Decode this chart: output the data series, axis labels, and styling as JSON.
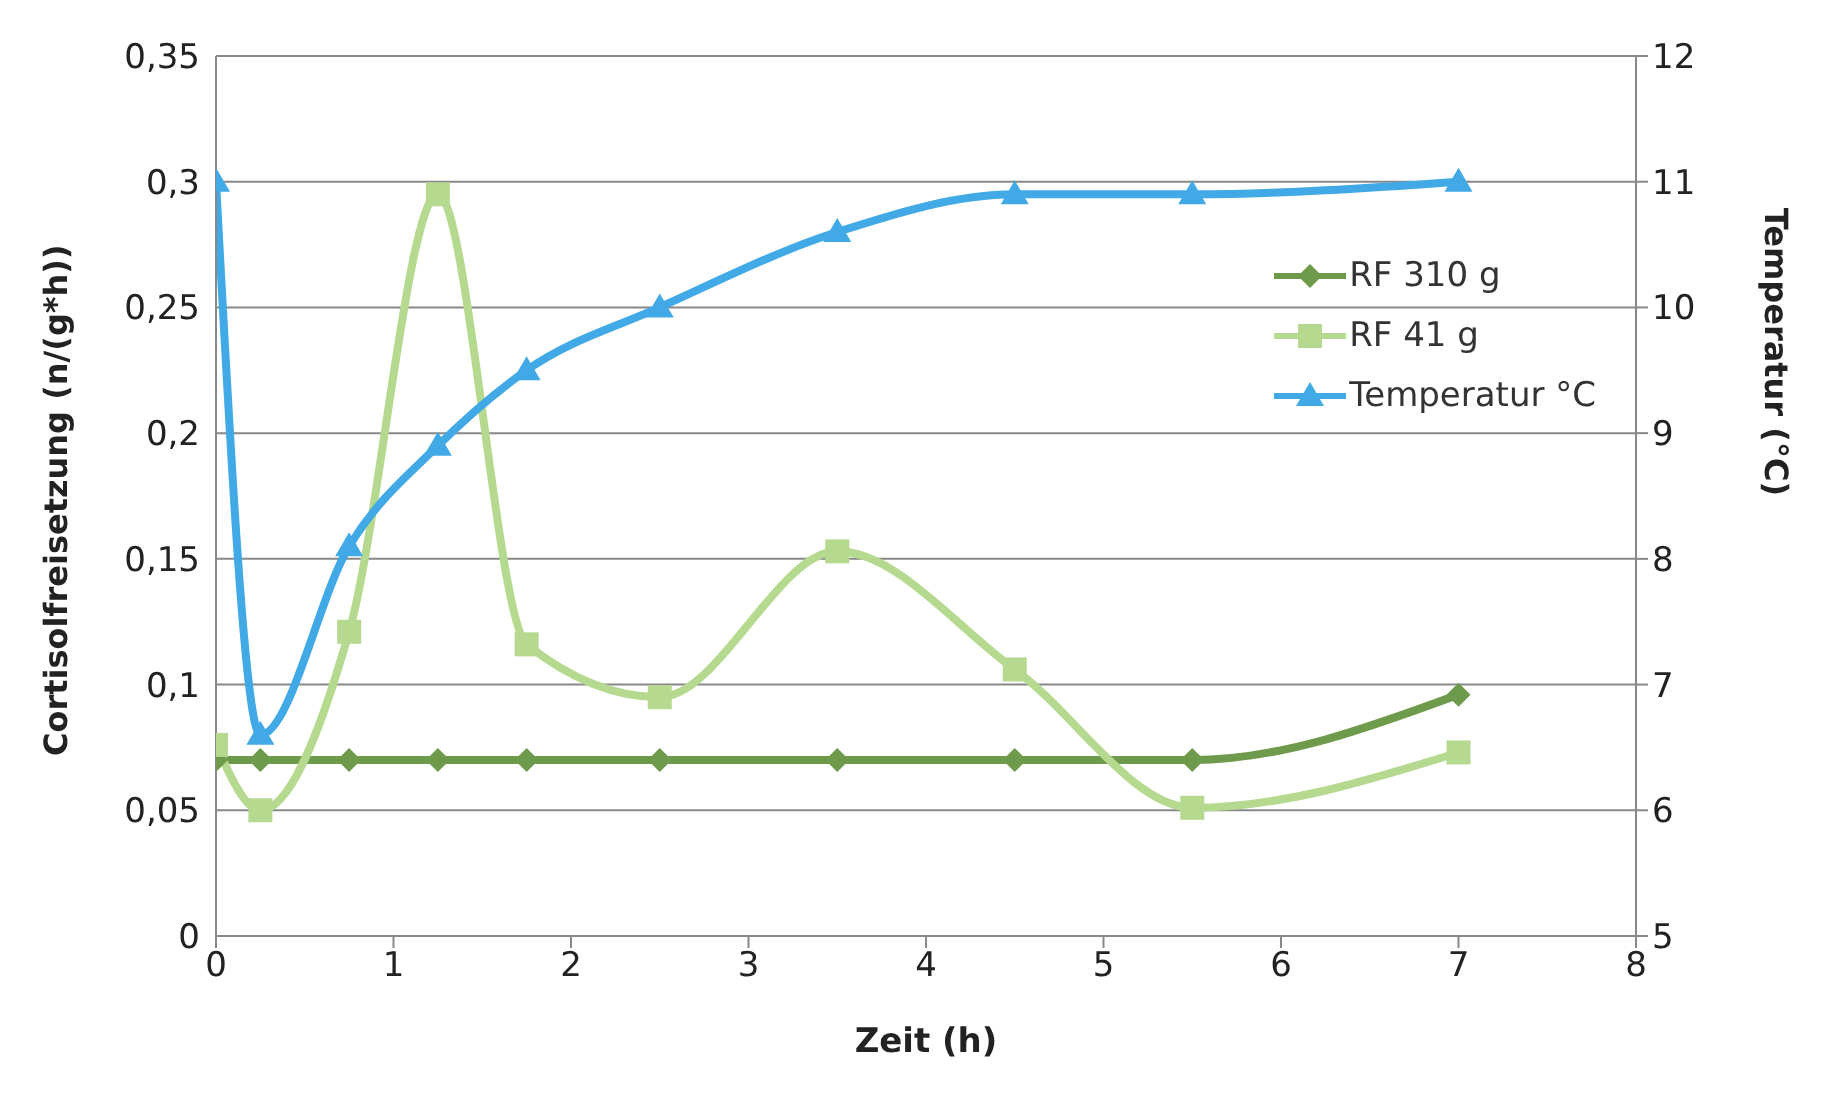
{
  "chart_data": {
    "type": "line",
    "xlabel": "Zeit (h)",
    "ylabel": "Cortisolfreisetzung (n/(g*h))",
    "y2label": "Temperatur (°C)",
    "x": [
      0,
      0.25,
      0.75,
      1.25,
      1.75,
      2.5,
      3.5,
      4.5,
      5.5,
      7
    ],
    "series": [
      {
        "name": "RF 310 g",
        "color": "#6e9a4c",
        "marker": "diamond",
        "values": [
          0.07,
          0.07,
          0.07,
          0.07,
          0.07,
          0.07,
          0.07,
          0.07,
          0.07,
          0.096
        ]
      },
      {
        "name": "RF 41 g",
        "color": "#b5d98f",
        "marker": "square",
        "values": [
          0.076,
          0.05,
          0.121,
          0.295,
          0.116,
          0.095,
          0.153,
          0.106,
          0.051,
          0.073
        ]
      },
      {
        "name": "Temperatur °C",
        "color": "#41a9e6",
        "marker": "triangle",
        "axis": "y2",
        "values": [
          11,
          6.6,
          8.1,
          8.9,
          9.5,
          10,
          10.6,
          10.9,
          10.9,
          11
        ]
      }
    ],
    "xlim": [
      0,
      8
    ],
    "xticks": [
      0,
      1,
      2,
      3,
      4,
      5,
      6,
      7,
      8
    ],
    "ylim": [
      0,
      0.35
    ],
    "yticks": [
      0,
      {
        "value": 0.05,
        "label": "0,05"
      },
      {
        "value": 0.1,
        "label": "0,1"
      },
      {
        "value": 0.15,
        "label": "0,15"
      },
      {
        "value": 0.2,
        "label": "0,2"
      },
      {
        "value": 0.25,
        "label": "0,25"
      },
      {
        "value": 0.3,
        "label": "0,3"
      },
      {
        "value": 0.35,
        "label": "0,35"
      }
    ],
    "y2lim": [
      5,
      12
    ],
    "y2ticks": [
      5,
      6,
      7,
      8,
      9,
      10,
      11,
      12
    ],
    "grid": "y",
    "legend": "top right",
    "line_style": "solid"
  }
}
